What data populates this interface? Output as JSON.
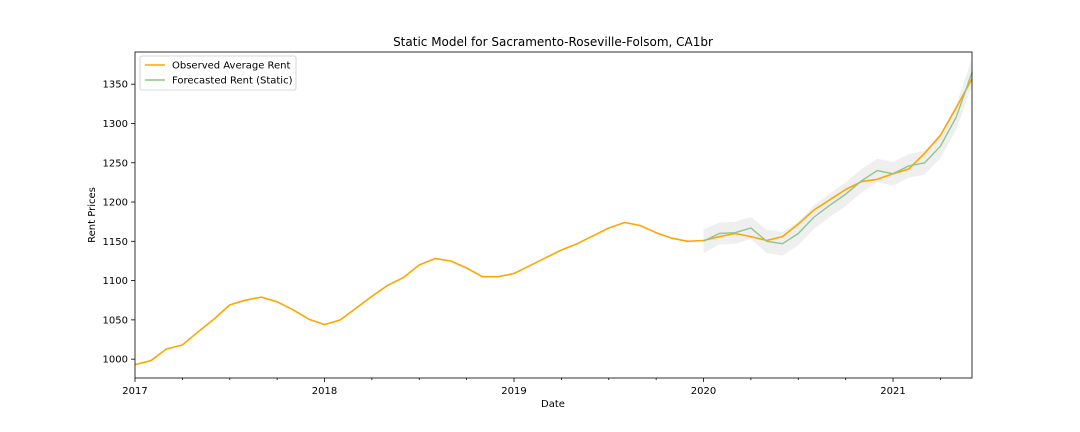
{
  "chart_data": {
    "type": "line",
    "title": "Static Model for Sacramento-Roseville-Folsom, CA1br",
    "xlabel": "Date",
    "ylabel": "Rent Prices",
    "xlim": [
      "2017-01",
      "2021-06"
    ],
    "ylim": [
      976,
      1391
    ],
    "x_ticks": [
      "2017",
      "2018",
      "2019",
      "2020",
      "2021"
    ],
    "y_ticks": [
      1000,
      1050,
      1100,
      1150,
      1200,
      1250,
      1300,
      1350
    ],
    "legend_position": "top-left",
    "grid": false,
    "series": [
      {
        "name": "Observed Average Rent",
        "color": "#ffa500",
        "x": [
          "2017-01",
          "2017-02",
          "2017-03",
          "2017-04",
          "2017-05",
          "2017-06",
          "2017-07",
          "2017-08",
          "2017-09",
          "2017-10",
          "2017-11",
          "2017-12",
          "2018-01",
          "2018-02",
          "2018-03",
          "2018-04",
          "2018-05",
          "2018-06",
          "2018-07",
          "2018-08",
          "2018-09",
          "2018-10",
          "2018-11",
          "2018-12",
          "2019-01",
          "2019-02",
          "2019-03",
          "2019-04",
          "2019-05",
          "2019-06",
          "2019-07",
          "2019-08",
          "2019-09",
          "2019-10",
          "2019-11",
          "2019-12",
          "2020-01",
          "2020-02",
          "2020-03",
          "2020-04",
          "2020-05",
          "2020-06",
          "2020-07",
          "2020-08",
          "2020-09",
          "2020-10",
          "2020-11",
          "2020-12",
          "2021-01",
          "2021-02",
          "2021-03",
          "2021-04",
          "2021-05",
          "2021-06"
        ],
        "values": [
          993,
          998,
          1013,
          1018,
          1035,
          1051,
          1069,
          1075,
          1079,
          1073,
          1063,
          1051,
          1044,
          1050,
          1065,
          1080,
          1094,
          1104,
          1120,
          1128,
          1125,
          1116,
          1105,
          1105,
          1109,
          1119,
          1129,
          1139,
          1147,
          1157,
          1167,
          1174,
          1170,
          1161,
          1154,
          1150,
          1151,
          1156,
          1160,
          1156,
          1151,
          1156,
          1172,
          1190,
          1203,
          1216,
          1226,
          1229,
          1236,
          1242,
          1262,
          1285,
          1320,
          1357
        ]
      },
      {
        "name": "Forecasted Rent (Static)",
        "color": "#8cc68c",
        "x": [
          "2020-01",
          "2020-02",
          "2020-03",
          "2020-04",
          "2020-05",
          "2020-06",
          "2020-07",
          "2020-08",
          "2020-09",
          "2020-10",
          "2020-11",
          "2020-12",
          "2021-01",
          "2021-02",
          "2021-03",
          "2021-04",
          "2021-05",
          "2021-06"
        ],
        "values": [
          1150,
          1160,
          1161,
          1167,
          1150,
          1147,
          1160,
          1181,
          1196,
          1210,
          1227,
          1240,
          1236,
          1246,
          1250,
          1271,
          1308,
          1365
        ],
        "ci_lower": [
          1135,
          1146,
          1147,
          1153,
          1135,
          1132,
          1145,
          1166,
          1181,
          1195,
          1212,
          1225,
          1221,
          1231,
          1235,
          1256,
          1292,
          1348
        ],
        "ci_upper": [
          1165,
          1174,
          1175,
          1181,
          1165,
          1162,
          1175,
          1196,
          1211,
          1225,
          1242,
          1255,
          1251,
          1261,
          1265,
          1286,
          1324,
          1382
        ],
        "ci_color": "#d0d0d0"
      }
    ]
  }
}
